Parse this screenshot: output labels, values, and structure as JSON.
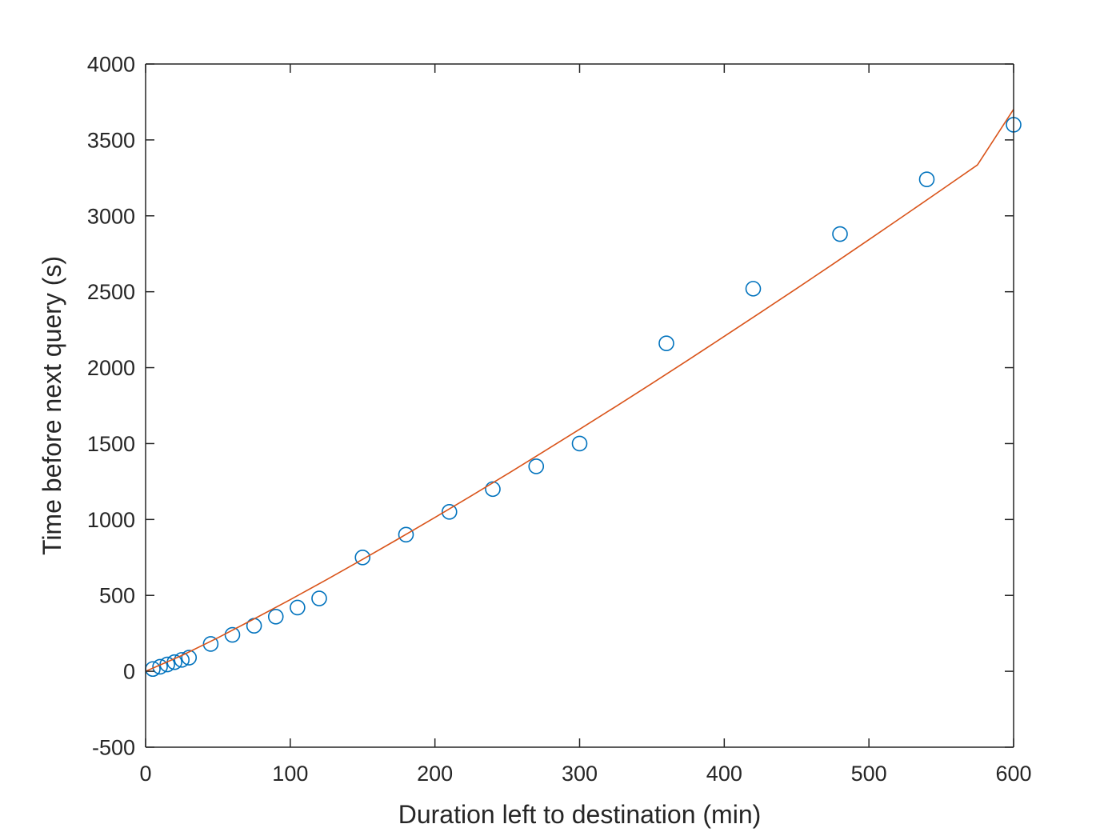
{
  "chart_data": {
    "type": "scatter",
    "title": "",
    "xlabel": "Duration left to destination (min)",
    "ylabel": "Time before next query (s)",
    "xlim": [
      0,
      600
    ],
    "ylim": [
      -500,
      4000
    ],
    "xticks": [
      0,
      100,
      200,
      300,
      400,
      500,
      600
    ],
    "yticks": [
      -500,
      0,
      500,
      1000,
      1500,
      2000,
      2500,
      3000,
      3500,
      4000
    ],
    "grid": false,
    "legend": "none",
    "box": true,
    "series": [
      {
        "kind": "markers",
        "marker": "circle-open",
        "color": "#0072BD",
        "x": [
          5,
          10,
          15,
          20,
          25,
          30,
          45,
          60,
          75,
          90,
          105,
          120,
          150,
          180,
          210,
          240,
          270,
          300,
          360,
          420,
          480,
          540,
          600
        ],
        "y": [
          15,
          30,
          45,
          60,
          75,
          90,
          180,
          240,
          300,
          360,
          420,
          480,
          750,
          900,
          1050,
          1200,
          1350,
          1500,
          2160,
          2520,
          2880,
          3240,
          3600
        ]
      },
      {
        "kind": "fit-line",
        "color": "#D95319",
        "x": [
          0,
          25,
          50,
          75,
          100,
          125,
          150,
          175,
          200,
          225,
          250,
          275,
          300,
          325,
          350,
          375,
          400,
          425,
          450,
          475,
          500,
          525,
          550,
          575,
          600
        ],
        "y": [
          0,
          104,
          221,
          345,
          472,
          603,
          737,
          874,
          1013,
          1155,
          1299,
          1446,
          1594,
          1744,
          1896,
          2050,
          2206,
          2363,
          2521,
          2681,
          2843,
          3006,
          3170,
          3335,
          3702
        ]
      }
    ]
  }
}
